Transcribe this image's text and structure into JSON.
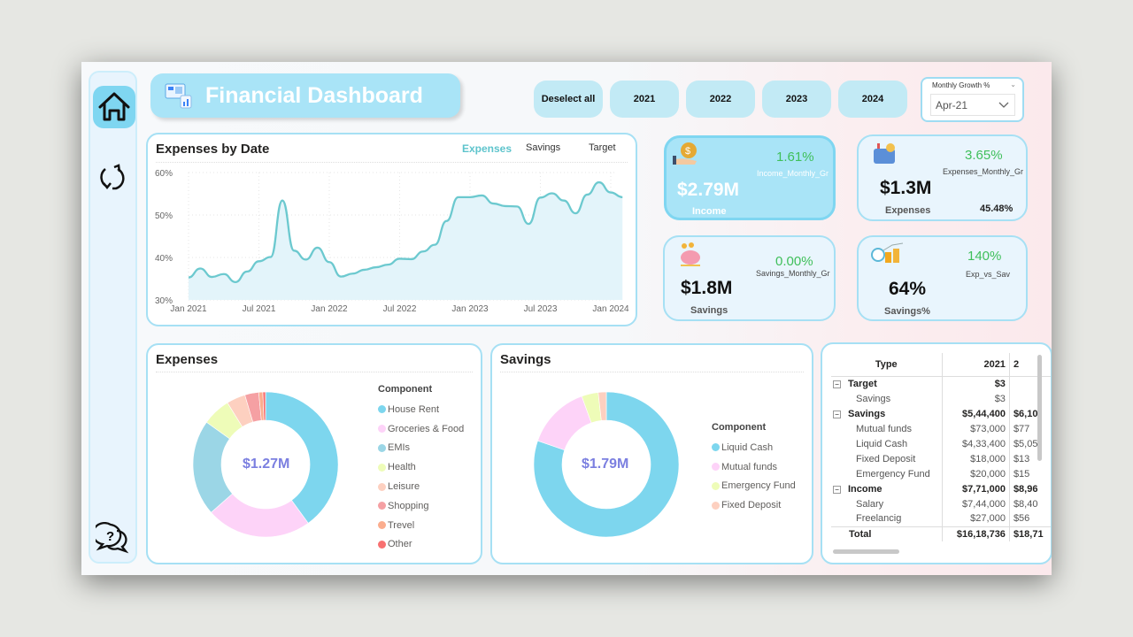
{
  "header": {
    "title": "Financial Dashboard",
    "deselect_label": "Deselect all",
    "years": [
      "2021",
      "2022",
      "2023",
      "2024"
    ],
    "dropdown": {
      "label": "Monthly Growth %",
      "value": "Apr-21"
    }
  },
  "sidebar": {
    "icons": [
      "home-icon",
      "refresh-icon",
      "help-chat-icon"
    ]
  },
  "kpis": {
    "income": {
      "value": "$2.79M",
      "label": "Income",
      "growth": "1.61%",
      "growth_label": "Income_Monthly_Gr"
    },
    "expenses": {
      "value": "$1.3M",
      "label": "Expenses",
      "growth": "3.65%",
      "growth_label": "Expenses_Monthly_Gr",
      "extra": "45.48%"
    },
    "savings": {
      "value": "$1.8M",
      "label": "Savings",
      "growth": "0.00%",
      "growth_label": "Savings_Monthly_Gr"
    },
    "savings_pct": {
      "value": "64%",
      "label": "Savings%",
      "growth": "140%",
      "growth_label": "Exp_vs_Sav"
    }
  },
  "colors": {
    "accent": "#7fd6f1",
    "line": "#6cc9cf",
    "positive": "#3fbf5a",
    "center_text": "#7b7fe0"
  },
  "chart_data": [
    {
      "type": "area",
      "title": "Expenses by Date",
      "tabs": [
        "Expenses",
        "Savings",
        "Target"
      ],
      "active_tab": "Expenses",
      "yticks": [
        "30%",
        "40%",
        "50%",
        "60%"
      ],
      "ylim": [
        30,
        60
      ],
      "xticks": [
        "Jan 2021",
        "Jul 2021",
        "Jan 2022",
        "Jul 2022",
        "Jan 2023",
        "Jul 2023",
        "Jan 2024"
      ],
      "x_start": "2021-01",
      "x_end": "2024-02",
      "values": [
        35.3,
        37.4,
        35.4,
        36.1,
        34.2,
        36.7,
        39.1,
        40.1,
        53.4,
        41.6,
        39.5,
        42.3,
        38.9,
        35.5,
        36.2,
        37.1,
        37.7,
        38.3,
        39.7,
        39.6,
        41.4,
        43.0,
        48.6,
        54.2,
        54.2,
        54.6,
        52.7,
        52.1,
        52.0,
        47.9,
        54.1,
        55.1,
        53.4,
        50.4,
        54.8,
        57.7,
        55.3,
        54.2
      ]
    },
    {
      "type": "pie",
      "title": "Expenses",
      "center": "$1.27M",
      "legend_title": "Component",
      "categories": [
        "House Rent",
        "Groceries & Food",
        "EMIs",
        "Health",
        "Leisure",
        "Shopping",
        "Trevel",
        "Other"
      ],
      "values": [
        40,
        23.5,
        21.4,
        6.3,
        4.2,
        3.1,
        0.9,
        0.6
      ],
      "colors": [
        "#7dd6ee",
        "#fdd3f8",
        "#9bd6e6",
        "#eefcb8",
        "#fdd0c0",
        "#f5a0a3",
        "#fbad8e",
        "#f87171"
      ]
    },
    {
      "type": "pie",
      "title": "Savings",
      "center": "$1.79M",
      "legend_title": "Component",
      "categories": [
        "Liquid Cash",
        "Mutual funds",
        "Emergency Fund",
        "Fixed Deposit"
      ],
      "values": [
        80.3,
        14.2,
        3.7,
        1.8
      ],
      "colors": [
        "#7dd6ee",
        "#fdd3f8",
        "#eefcb8",
        "#fdd0c0"
      ]
    }
  ],
  "table": {
    "headers": [
      "Type",
      "2021",
      "2"
    ],
    "rows": [
      {
        "type": "Target",
        "level": 0,
        "c1": "$3",
        "c2": ""
      },
      {
        "type": "Savings",
        "level": 1,
        "c1": "$3",
        "c2": ""
      },
      {
        "type": "Savings",
        "level": 0,
        "c1": "$5,44,400",
        "c2": "$6,10"
      },
      {
        "type": "Mutual funds",
        "level": 1,
        "c1": "$73,000",
        "c2": "$77"
      },
      {
        "type": "Liquid Cash",
        "level": 1,
        "c1": "$4,33,400",
        "c2": "$5,05"
      },
      {
        "type": "Fixed Deposit",
        "level": 1,
        "c1": "$18,000",
        "c2": "$13"
      },
      {
        "type": "Emergency Fund",
        "level": 1,
        "c1": "$20,000",
        "c2": "$15"
      },
      {
        "type": "Income",
        "level": 0,
        "c1": "$7,71,000",
        "c2": "$8,96"
      },
      {
        "type": "Salary",
        "level": 1,
        "c1": "$7,44,000",
        "c2": "$8,40"
      },
      {
        "type": "Freelancig",
        "level": 1,
        "c1": "$27,000",
        "c2": "$56"
      }
    ],
    "total": {
      "type": "Total",
      "c1": "$16,18,736",
      "c2": "$18,71"
    }
  }
}
